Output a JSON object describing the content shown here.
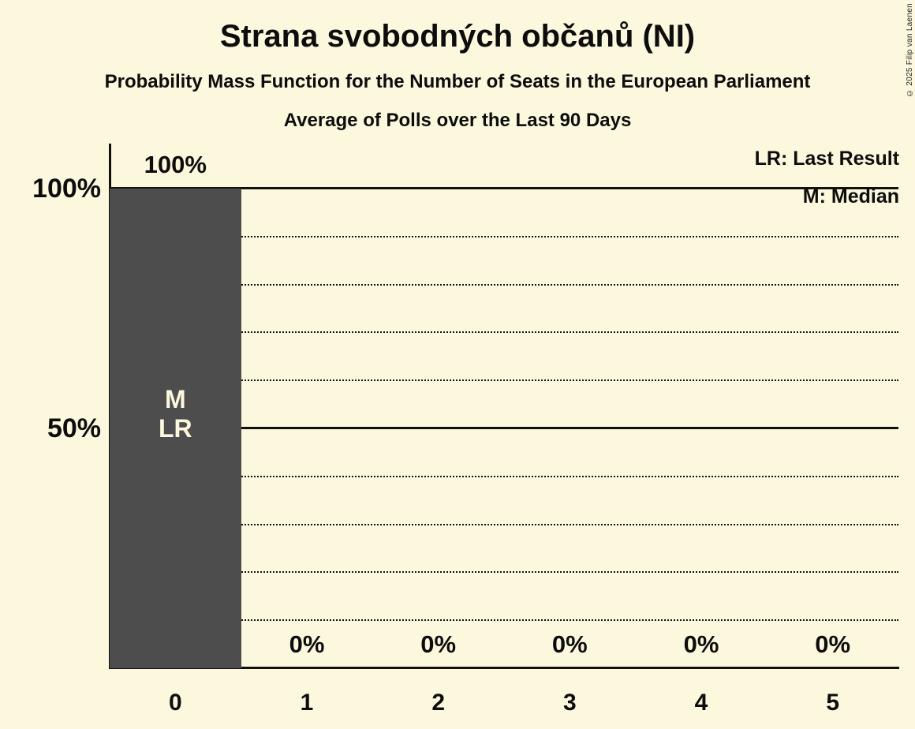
{
  "title": "Strana svobodných občanů (NI)",
  "subtitle": "Probability Mass Function for the Number of Seats in the European Parliament",
  "subtitle2": "Average of Polls over the Last 90 Days",
  "legend": {
    "last_result": "LR: Last Result",
    "median": "M: Median"
  },
  "copyright": "© 2025 Filip van Laenen",
  "colors": {
    "background": "#FCF8DE",
    "bar": "#4D4D4D",
    "text": "#0D0D0D",
    "bar_annotation_text": "#FCF8DE",
    "gridline": "#111111"
  },
  "chart_data": {
    "type": "bar",
    "title": "Strana svobodných občanů (NI)",
    "subtitle": "Probability Mass Function for the Number of Seats in the European Parliament",
    "categories": [
      "0",
      "1",
      "2",
      "3",
      "4",
      "5"
    ],
    "values": [
      100,
      0,
      0,
      0,
      0,
      0
    ],
    "value_labels": [
      "100%",
      "0%",
      "0%",
      "0%",
      "0%",
      "0%"
    ],
    "y_ticks": [
      {
        "pct": 100,
        "label": "100%"
      },
      {
        "pct": 50,
        "label": "50%"
      }
    ],
    "gridlines_pct": [
      10,
      20,
      30,
      40,
      50,
      60,
      70,
      80,
      90,
      100
    ],
    "solid_gridlines_pct": [
      50,
      100
    ],
    "ylim": [
      0,
      100
    ],
    "grid": "dotted-horizontal",
    "legend_position": "top-right",
    "annotated_bar": {
      "category": "0",
      "labels": [
        "M",
        "LR"
      ],
      "meaning": [
        "Median",
        "Last Result"
      ]
    }
  }
}
